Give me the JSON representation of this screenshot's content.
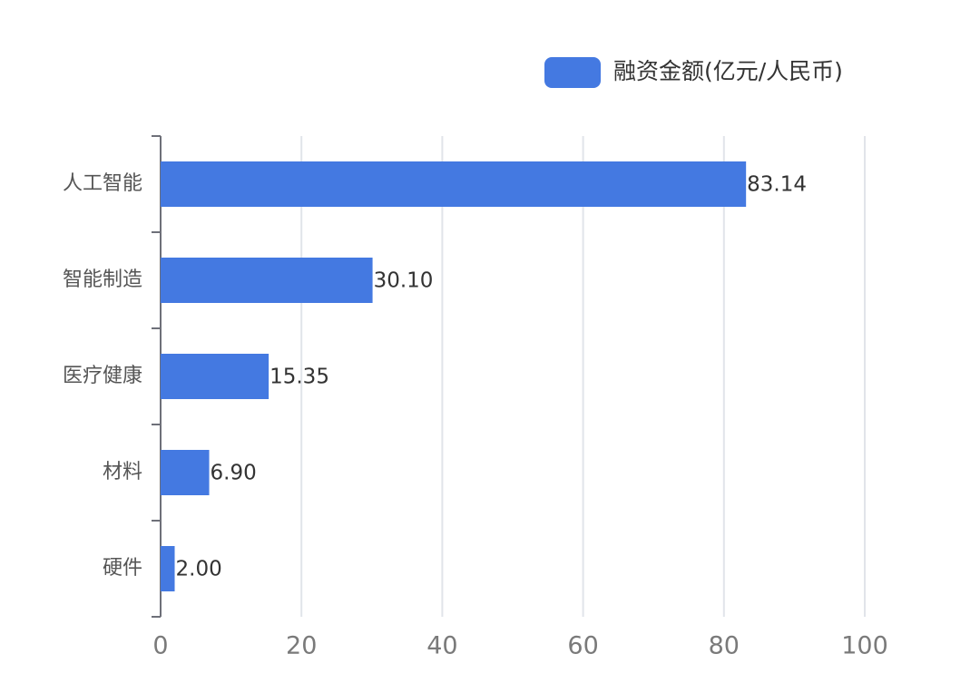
{
  "chart_data": {
    "type": "hbar",
    "categories": [
      "人工智能",
      "智能制造",
      "医疗健康",
      "材料",
      "硬件"
    ],
    "series": [
      {
        "name": "融资金额(亿元/人民币)",
        "color": "#4479e1",
        "values": [
          83.14,
          30.1,
          15.35,
          6.9,
          2.0
        ],
        "value_labels": [
          "83.14",
          "30.10",
          "15.35",
          "6.90",
          "2.00"
        ]
      }
    ],
    "xlim": [
      0,
      100
    ],
    "xticks": [
      0,
      20,
      40,
      60,
      80,
      100
    ],
    "grid": true,
    "legend": "top-right"
  }
}
